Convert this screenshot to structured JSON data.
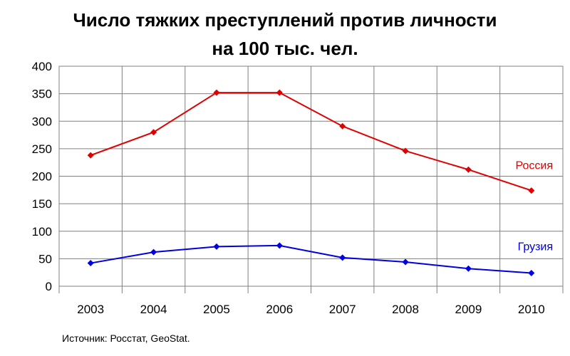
{
  "chart_data": {
    "type": "line",
    "title_line1": "Число тяжких преступлений против личности",
    "title_line2": "на 100 тыс. чел.",
    "xlabel": "",
    "ylabel": "",
    "categories": [
      "2003",
      "2004",
      "2005",
      "2006",
      "2007",
      "2008",
      "2009",
      "2010"
    ],
    "ylim": [
      0,
      400
    ],
    "yticks": [
      "0",
      "50",
      "100",
      "150",
      "200",
      "250",
      "300",
      "350",
      "400"
    ],
    "grid": true,
    "legend": "inline labels at right end of each series",
    "series": [
      {
        "name": "Россия",
        "color": "#e00000",
        "values": [
          238,
          280,
          352,
          352,
          291,
          246,
          212,
          174
        ]
      },
      {
        "name": "Грузия",
        "color": "#0000e0",
        "values": [
          42,
          62,
          72,
          74,
          52,
          44,
          32,
          24
        ]
      }
    ]
  },
  "source_note": "Источник: Росстат, GeoStat."
}
